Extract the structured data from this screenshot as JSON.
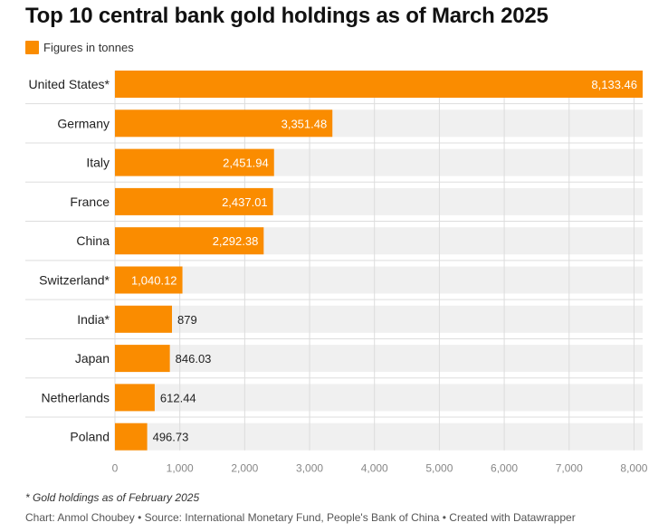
{
  "chart_data": {
    "type": "bar",
    "orientation": "horizontal",
    "title": "Top 10 central bank gold holdings as of March 2025",
    "legend": {
      "label": "Figures in tonnes",
      "color": "#fa8c00"
    },
    "categories": [
      "United States*",
      "Germany",
      "Italy",
      "France",
      "China",
      "Switzerland*",
      "India*",
      "Japan",
      "Netherlands",
      "Poland"
    ],
    "values": [
      8133.46,
      3351.48,
      2451.94,
      2437.01,
      2292.38,
      1040.12,
      879,
      846.03,
      612.44,
      496.73
    ],
    "value_labels": [
      "8,133.46",
      "3,351.48",
      "2,451.94",
      "2,437.01",
      "2,292.38",
      "1,040.12",
      "879",
      "846.03",
      "612.44",
      "496.73"
    ],
    "xlim": [
      0,
      8133.46
    ],
    "xticks": [
      0,
      1000,
      2000,
      3000,
      4000,
      5000,
      6000,
      7000,
      8000
    ],
    "xtick_labels": [
      "0",
      "1,000",
      "2,000",
      "3,000",
      "4,000",
      "5,000",
      "6,000",
      "7,000",
      "8,000"
    ],
    "bar_color": "#fa8c00",
    "grid": true
  },
  "footnote": "* Gold holdings as of February 2025",
  "credits": "Chart: Anmol Choubey • Source: International Monetary Fund, People's Bank of China • Created with Datawrapper"
}
